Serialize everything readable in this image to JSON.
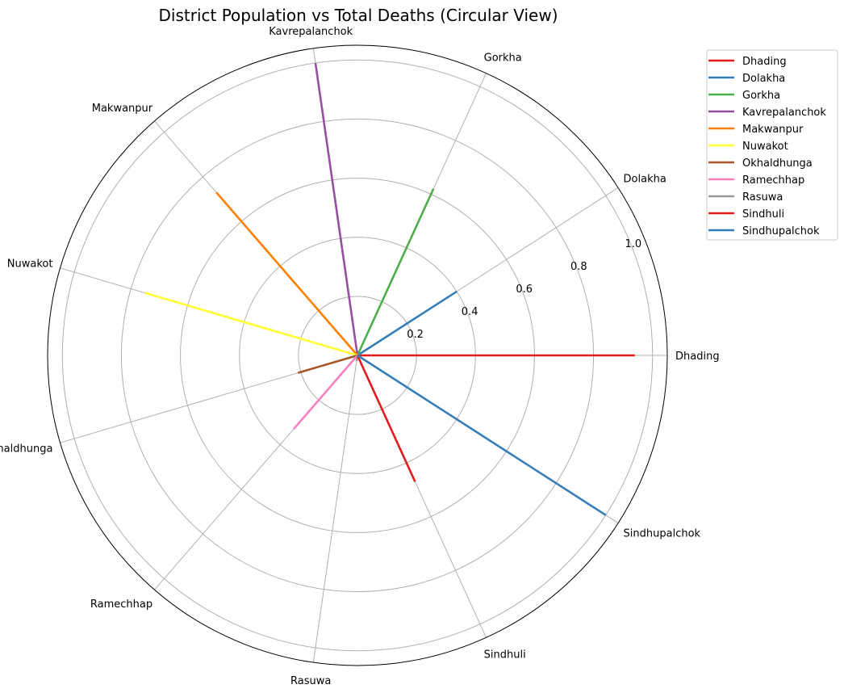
{
  "chart_data": {
    "type": "polar-radial-lines",
    "title": "District Population vs Total Deaths (Circular View)",
    "radial_ticks": [
      "0.2",
      "0.4",
      "0.6",
      "0.8",
      "1.0"
    ],
    "radial_tick_values": [
      0.2,
      0.4,
      0.6,
      0.8,
      1.0
    ],
    "rlim": [
      0,
      1.05
    ],
    "grid": true,
    "legend_position": "upper-right outside",
    "categories": [
      "Dhading",
      "Dolakha",
      "Gorkha",
      "Kavrepalanchok",
      "Makwanpur",
      "Nuwakot",
      "Okhaldhunga",
      "Ramechhap",
      "Rasuwa",
      "Sindhuli",
      "Sindhupalchok"
    ],
    "series": [
      {
        "name": "Dhading",
        "value": 0.94,
        "color": "#e41a1c"
      },
      {
        "name": "Dolakha",
        "value": 0.4,
        "color": "#377eb8"
      },
      {
        "name": "Gorkha",
        "value": 0.62,
        "color": "#4daf4a"
      },
      {
        "name": "Kavrepalanchok",
        "value": 1.0,
        "color": "#984ea3"
      },
      {
        "name": "Makwanpur",
        "value": 0.73,
        "color": "#ff7f00"
      },
      {
        "name": "Nuwakot",
        "value": 0.75,
        "color": "#ffff33"
      },
      {
        "name": "Okhaldhunga",
        "value": 0.21,
        "color": "#a65628"
      },
      {
        "name": "Ramechhap",
        "value": 0.33,
        "color": "#f781bf"
      },
      {
        "name": "Rasuwa",
        "value": 0.02,
        "color": "#999999"
      },
      {
        "name": "Sindhuli",
        "value": 0.47,
        "color": "#e41a1c"
      },
      {
        "name": "Sindhupalchok",
        "value": 1.0,
        "color": "#377eb8"
      }
    ]
  }
}
